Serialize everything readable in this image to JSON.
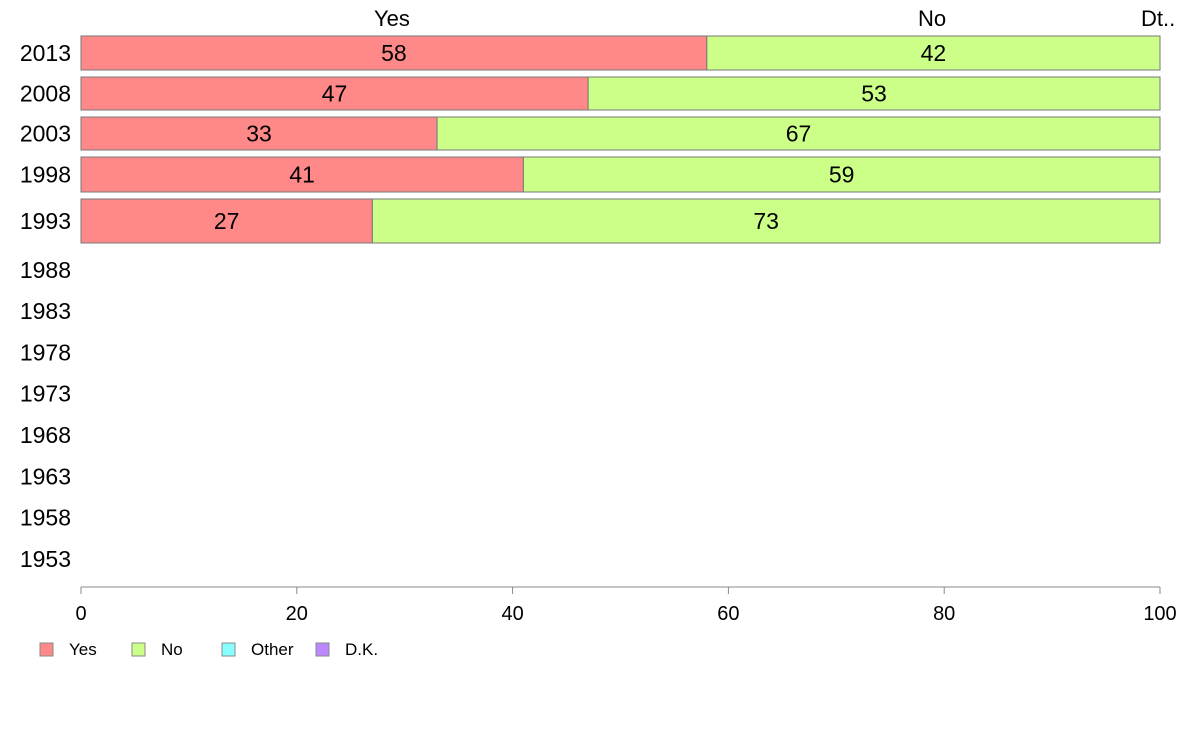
{
  "chart_data": {
    "type": "bar",
    "orientation": "horizontal",
    "stacked": true,
    "categories": [
      "2013",
      "2008",
      "2003",
      "1998",
      "1993",
      "1988",
      "1983",
      "1978",
      "1973",
      "1968",
      "1963",
      "1958",
      "1953"
    ],
    "series": [
      {
        "name": "Yes",
        "color": "#ff8888",
        "values": [
          58,
          47,
          33,
          41,
          27,
          null,
          null,
          null,
          null,
          null,
          null,
          null,
          null
        ]
      },
      {
        "name": "No",
        "color": "#ccff88",
        "values": [
          42,
          53,
          67,
          59,
          73,
          null,
          null,
          null,
          null,
          null,
          null,
          null,
          null
        ]
      },
      {
        "name": "Other",
        "color": "#88ffff",
        "values": [
          0,
          0,
          0,
          0,
          0,
          null,
          null,
          null,
          null,
          null,
          null,
          null,
          null
        ]
      },
      {
        "name": "D.K.",
        "color": "#bb88ff",
        "values": [
          0,
          0,
          0,
          0,
          0,
          null,
          null,
          null,
          null,
          null,
          null,
          null,
          null
        ]
      }
    ],
    "top_labels": [
      "Yes",
      "No",
      "Dt.."
    ],
    "xlim": [
      0,
      100
    ],
    "xticks": [
      0,
      20,
      40,
      60,
      80,
      100
    ],
    "grid": false,
    "legend_position": "bottom-left"
  }
}
